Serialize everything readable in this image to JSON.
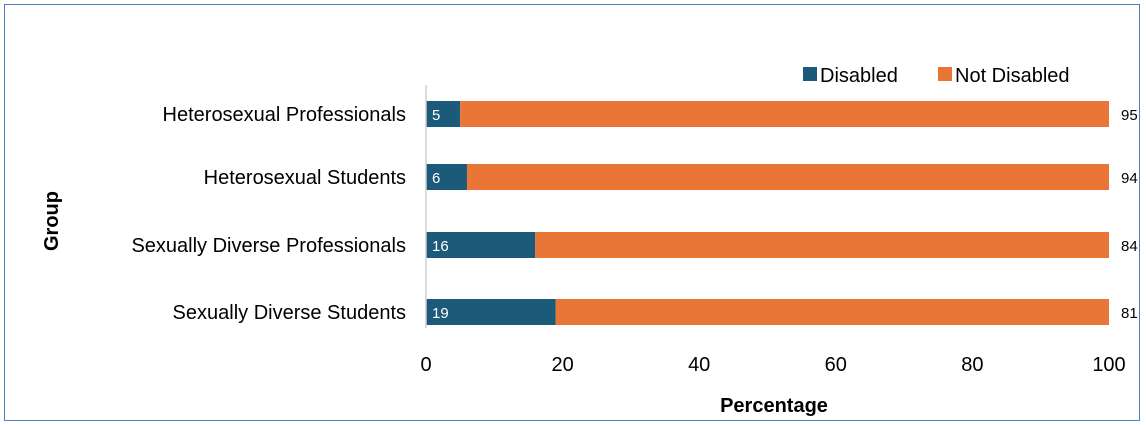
{
  "chart_data": {
    "type": "bar",
    "orientation": "horizontal",
    "stacked": true,
    "categories": [
      "Heterosexual Professionals",
      "Heterosexual Students",
      "Sexually Diverse Professionals",
      "Sexually Diverse Students"
    ],
    "series": [
      {
        "name": "Disabled",
        "values": [
          5,
          6,
          16,
          19
        ],
        "color": "#1c5a7a"
      },
      {
        "name": "Not Disabled",
        "values": [
          95,
          94,
          84,
          81
        ],
        "color": "#e97537"
      }
    ],
    "xlabel": "Percentage",
    "ylabel": "Group",
    "xlim": [
      0,
      100
    ],
    "xticks": [
      "0",
      "20",
      "40",
      "60",
      "80",
      "100"
    ],
    "grid": false,
    "legend_position": "top-right"
  }
}
